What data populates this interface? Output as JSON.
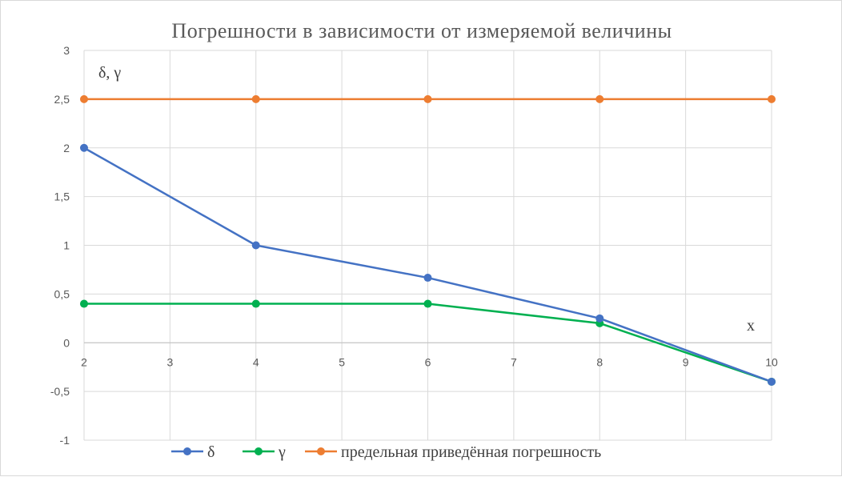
{
  "chart_data": {
    "type": "line",
    "title": "Погрешности в зависимости от измеряемой величины",
    "xlabel": "x",
    "ylabel": "δ, γ",
    "xlim": [
      2,
      10
    ],
    "ylim": [
      -1,
      3
    ],
    "x_ticks": [
      "2",
      "3",
      "4",
      "5",
      "6",
      "7",
      "8",
      "9",
      "10"
    ],
    "y_ticks": [
      "-1",
      "-0,5",
      "0",
      "0,5",
      "1",
      "1,5",
      "2",
      "2,5",
      "3"
    ],
    "x": [
      2,
      4,
      6,
      8,
      10
    ],
    "grid": true,
    "legend_position": "bottom",
    "series": [
      {
        "name": "δ",
        "color": "#4472C4",
        "values": [
          2,
          1,
          0.667,
          0.25,
          -0.4
        ]
      },
      {
        "name": "γ",
        "color": "#00B050",
        "values": [
          0.4,
          0.4,
          0.4,
          0.2,
          -0.4
        ]
      },
      {
        "name": "предельная приведённая погрешность",
        "color": "#ED7D31",
        "values": [
          2.5,
          2.5,
          2.5,
          2.5,
          2.5
        ]
      }
    ]
  }
}
